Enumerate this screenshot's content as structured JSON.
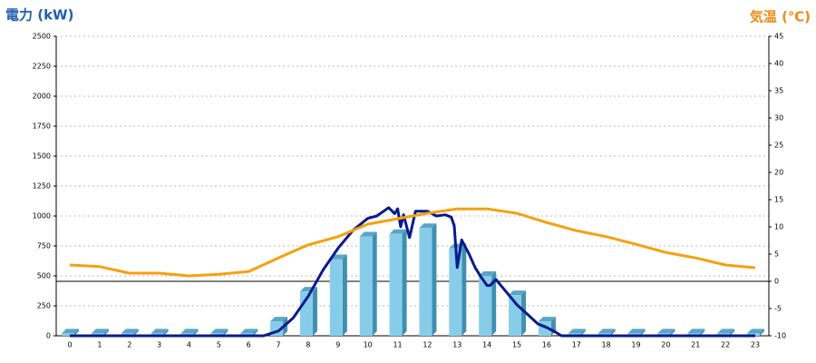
{
  "chart_data": {
    "type": "bar",
    "y_title": "電力 (kW)",
    "y2_title": "気温 (℃)",
    "categories": [
      "0",
      "1",
      "2",
      "3",
      "4",
      "5",
      "6",
      "7",
      "8",
      "9",
      "10",
      "11",
      "12",
      "13",
      "14",
      "15",
      "16",
      "17",
      "18",
      "19",
      "20",
      "21",
      "22",
      "23"
    ],
    "ylim": [
      0,
      2500
    ],
    "yticks": [
      0,
      250,
      500,
      750,
      1000,
      1250,
      1500,
      1750,
      2000,
      2250,
      2500
    ],
    "y2lim": [
      -10,
      45
    ],
    "y2ticks": [
      -10,
      -5,
      0,
      5,
      10,
      15,
      20,
      25,
      30,
      35,
      40,
      45
    ],
    "grid": true,
    "series": [
      {
        "type": "bar",
        "color": "#87cdea",
        "values": [
          20,
          20,
          20,
          20,
          20,
          20,
          20,
          120,
          370,
          640,
          830,
          850,
          900,
          730,
          500,
          340,
          120,
          20,
          20,
          20,
          20,
          20,
          20,
          20
        ]
      },
      {
        "type": "line",
        "color": "#0a1a8c",
        "x": [
          0,
          6.5,
          7,
          7.5,
          8,
          8.5,
          9,
          9.5,
          10,
          10.3,
          10.7,
          10.9,
          11,
          11.1,
          11.2,
          11.4,
          11.6,
          12,
          12.3,
          12.6,
          12.8,
          12.9,
          13,
          13.15,
          13.4,
          13.6,
          13.8,
          14,
          14.1,
          14.3,
          14.5,
          14.8,
          15,
          15.4,
          15.7,
          16,
          16.3,
          16.5,
          23
        ],
        "values": [
          0,
          0,
          40,
          150,
          330,
          550,
          730,
          880,
          980,
          1000,
          1070,
          1020,
          1060,
          910,
          1010,
          820,
          1040,
          1040,
          1000,
          1010,
          990,
          920,
          570,
          800,
          680,
          570,
          490,
          420,
          420,
          470,
          410,
          320,
          260,
          170,
          100,
          70,
          30,
          0,
          0
        ]
      },
      {
        "type": "line",
        "color": "#f5a00f",
        "axis": "y2",
        "values": [
          3,
          2.7,
          1.5,
          1.5,
          1,
          1.3,
          1.8,
          4.3,
          6.7,
          8.2,
          10.5,
          11.5,
          12.5,
          13.3,
          13.3,
          12.5,
          10.8,
          9.3,
          8.2,
          6.8,
          5.3,
          4.3,
          3,
          2.5
        ]
      }
    ]
  }
}
